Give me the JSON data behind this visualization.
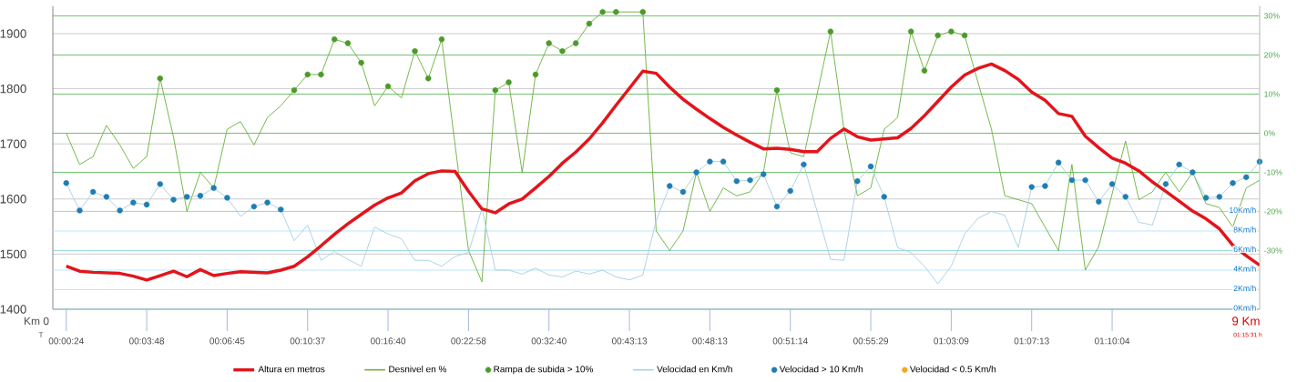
{
  "chart_data": {
    "type": "line",
    "categories": [
      "00:00:24",
      null,
      null,
      null,
      null,
      null,
      "00:03:48",
      null,
      null,
      null,
      null,
      null,
      "00:06:45",
      null,
      null,
      null,
      null,
      null,
      "00:10:37",
      null,
      null,
      null,
      null,
      null,
      "00:16:40",
      null,
      null,
      null,
      null,
      null,
      "00:22:58",
      null,
      null,
      null,
      null,
      null,
      "00:32:40",
      null,
      null,
      null,
      null,
      null,
      "00:43:13",
      null,
      null,
      null,
      null,
      null,
      "00:48:13",
      null,
      null,
      null,
      null,
      null,
      "00:51:14",
      null,
      null,
      null,
      null,
      null,
      "00:55:29",
      null,
      null,
      null,
      null,
      null,
      "01:03:09",
      null,
      null,
      null,
      null,
      null,
      "01:07:13",
      null,
      null,
      null,
      null,
      null,
      "01:10:04",
      null,
      null,
      null,
      null,
      null,
      null,
      null,
      null,
      null,
      null,
      null
    ],
    "ylim": [
      1400,
      1950
    ],
    "yticks": [
      1400,
      1500,
      1600,
      1700,
      1800,
      1900
    ],
    "y2lim": [
      -45,
      32.5
    ],
    "y2ticks": [
      {
        "value": 30,
        "label": "30%"
      },
      {
        "value": 20,
        "label": "20%"
      },
      {
        "value": 10,
        "label": "10%"
      },
      {
        "value": 0,
        "label": "0%"
      },
      {
        "value": -10,
        "label": "-10%"
      },
      {
        "value": -20,
        "label": "-20%"
      },
      {
        "value": -30,
        "label": "-30%"
      }
    ],
    "y3lim": [
      0,
      31
    ],
    "y3ticks": [
      {
        "value": 0,
        "label": "0Km/h"
      },
      {
        "value": 2,
        "label": "2Km/h"
      },
      {
        "value": 4,
        "label": "4Km/h"
      },
      {
        "value": 6,
        "label": "6Km/h"
      },
      {
        "value": 8,
        "label": "8Km/h"
      },
      {
        "value": 10,
        "label": "10Km/h"
      }
    ],
    "grid": "y",
    "legend": "bottom",
    "annotations": [
      "Km 0",
      "T",
      "9 Km",
      "01:15:31 h"
    ],
    "series": [
      {
        "name": "Altura en metros",
        "axis": "y",
        "color": "#e3141b",
        "values": [
          1478,
          1469,
          1467,
          1466,
          1465,
          1460,
          1453,
          1461,
          1469,
          1459,
          1472,
          1461,
          1465,
          1468,
          1467,
          1466,
          1471,
          1478,
          1495,
          1515,
          1536,
          1555,
          1572,
          1589,
          1602,
          1611,
          1633,
          1646,
          1651,
          1650,
          1614,
          1582,
          1575,
          1591,
          1600,
          1620,
          1641,
          1665,
          1685,
          1709,
          1738,
          1770,
          1801,
          1832,
          1828,
          1803,
          1781,
          1763,
          1746,
          1730,
          1716,
          1703,
          1691,
          1692,
          1690,
          1686,
          1686,
          1710,
          1727,
          1713,
          1707,
          1709,
          1711,
          1728,
          1751,
          1777,
          1803,
          1825,
          1837,
          1845,
          1833,
          1817,
          1794,
          1779,
          1755,
          1750,
          1714,
          1693,
          1674,
          1665,
          1651,
          1631,
          1614,
          1596,
          1578,
          1564,
          1546,
          1516,
          1497,
          1480
        ]
      },
      {
        "name": "Desnivel en %",
        "axis": "y2",
        "color": "#6db33f",
        "values": [
          0,
          -8,
          -6,
          2,
          -3,
          -9,
          -6,
          14,
          -1,
          -20,
          -10,
          -14,
          1,
          3,
          -3,
          4,
          7,
          11,
          15,
          15,
          24,
          23,
          18,
          7,
          12,
          9,
          21,
          14,
          24,
          null,
          -30,
          -38,
          11,
          13,
          -10,
          15,
          23,
          21,
          23,
          28,
          31,
          31,
          null,
          31,
          -25,
          -30,
          -25,
          -10,
          -20,
          -14,
          -16,
          -15,
          -10,
          11,
          -5,
          -6,
          null,
          26,
          1,
          -16,
          -14,
          1,
          4,
          26,
          16,
          25,
          26,
          25,
          null,
          1,
          -16,
          null,
          -18,
          null,
          -30,
          -8,
          -35,
          -29,
          null,
          -2,
          -17,
          -15,
          -10,
          -15,
          -10,
          -18,
          -19,
          -24,
          -14,
          -12
        ]
      },
      {
        "name": "Rampa de subida > 10%",
        "type": "scatter",
        "marker": "circle",
        "axis": "y2",
        "color": "#4c9a2a",
        "values": [
          null,
          null,
          null,
          null,
          null,
          null,
          null,
          14,
          null,
          null,
          null,
          null,
          null,
          null,
          null,
          null,
          null,
          11,
          15,
          15,
          24,
          23,
          18,
          null,
          12,
          null,
          21,
          14,
          24,
          null,
          null,
          null,
          11,
          13,
          null,
          15,
          23,
          21,
          23,
          28,
          31,
          31,
          null,
          31,
          null,
          null,
          null,
          null,
          null,
          null,
          null,
          null,
          null,
          11,
          null,
          null,
          null,
          26,
          null,
          null,
          null,
          null,
          null,
          26,
          16,
          25,
          26,
          25,
          null,
          null,
          null,
          null,
          null,
          null,
          null,
          null,
          null,
          null,
          null,
          null,
          null,
          null,
          null,
          null,
          null,
          null,
          null,
          null,
          null,
          null
        ]
      },
      {
        "name": "Velocidad en Km/h",
        "axis": "y3",
        "color": "#a9cfe3",
        "values": [
          12.9,
          10.1,
          12,
          11.5,
          10.1,
          10.9,
          10.7,
          12.8,
          11.2,
          11.5,
          11.6,
          12.4,
          11.4,
          9.5,
          10.5,
          10.9,
          10.2,
          7,
          8.6,
          5,
          5.9,
          5.1,
          4.4,
          8.4,
          7.7,
          7.2,
          5,
          5,
          4.4,
          5.4,
          5.8,
          10.3,
          4,
          4,
          3.6,
          4.2,
          3.5,
          3.3,
          3.9,
          3.6,
          4,
          3.3,
          3,
          3.5,
          9.1,
          12.6,
          12,
          14,
          15.1,
          15.1,
          13.1,
          13.2,
          13.8,
          10.5,
          12.1,
          14.8,
          10,
          5.1,
          5,
          13.1,
          14.6,
          11.5,
          6.3,
          5.8,
          4.4,
          2.6,
          4.4,
          7.7,
          9.3,
          10,
          9.6,
          6.3,
          12.5,
          12.6,
          15,
          13.2,
          13.2,
          11,
          12.8,
          11.5,
          8.9,
          8.6,
          12.8,
          14.8,
          14,
          11.4,
          11.5,
          12.9,
          13.5,
          15.1
        ]
      },
      {
        "name": "Velocidad > 10 Km/h",
        "type": "scatter",
        "marker": "circle",
        "axis": "y3",
        "color": "#1f7db4",
        "values": [
          12.9,
          10.1,
          12,
          11.5,
          10.1,
          10.9,
          10.7,
          12.8,
          11.2,
          11.5,
          11.6,
          12.4,
          11.4,
          null,
          10.5,
          10.9,
          10.2,
          null,
          null,
          null,
          null,
          null,
          null,
          null,
          null,
          null,
          null,
          null,
          null,
          null,
          null,
          null,
          null,
          null,
          null,
          null,
          null,
          null,
          null,
          null,
          null,
          null,
          null,
          null,
          null,
          12.6,
          12,
          14,
          15.1,
          15.1,
          13.1,
          13.2,
          13.8,
          10.5,
          12.1,
          14.8,
          null,
          null,
          null,
          13.1,
          14.6,
          11.5,
          null,
          null,
          null,
          null,
          null,
          null,
          null,
          null,
          null,
          null,
          12.5,
          12.6,
          15,
          13.2,
          13.2,
          11,
          12.8,
          11.5,
          null,
          null,
          12.8,
          14.8,
          14,
          11.4,
          11.5,
          12.9,
          13.5,
          15.1
        ]
      },
      {
        "name": "Velocidad < 0.5 Km/h",
        "type": "scatter",
        "marker": "circle",
        "axis": "y3",
        "color": "#f5a623",
        "values": [
          null,
          null,
          null,
          null,
          null,
          null,
          null,
          null,
          null,
          null,
          null,
          null,
          null,
          null,
          null,
          null,
          null,
          null,
          null,
          null,
          null,
          null,
          null,
          null,
          null,
          null,
          null,
          null,
          null,
          null,
          null,
          null,
          null,
          null,
          null,
          null,
          null,
          null,
          null,
          null,
          null,
          null,
          null,
          null,
          null,
          null,
          null,
          null,
          null,
          null,
          null,
          null,
          null,
          null,
          null,
          null,
          null,
          null,
          null,
          null,
          null,
          null,
          null,
          null,
          null,
          null,
          null,
          null,
          null,
          null,
          null,
          null,
          null,
          null,
          null,
          null,
          null,
          null,
          null,
          null,
          null,
          null,
          null,
          null,
          null,
          null,
          null,
          null,
          null,
          null
        ]
      }
    ]
  }
}
